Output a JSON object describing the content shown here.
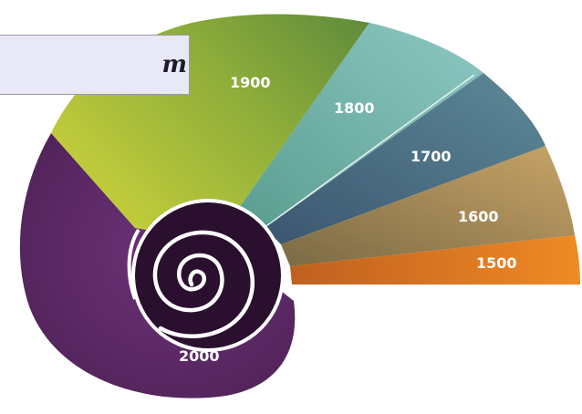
{
  "title_fragment": "m",
  "eras": [
    {
      "label": "2000",
      "color": "#5e2a66"
    },
    {
      "label": "1900",
      "color": "#8faa37"
    },
    {
      "label": "1800",
      "color": "#6fb0ae"
    },
    {
      "label": "1700",
      "color": "#4a6f82"
    },
    {
      "label": "1600",
      "color": "#a0844c"
    },
    {
      "label": "1500",
      "color": "#dd7a22"
    }
  ],
  "colors": {
    "spiral_core": "#2a0f2e",
    "spiral_line": "#ffffff",
    "title_bg": "#e9e8f6"
  }
}
